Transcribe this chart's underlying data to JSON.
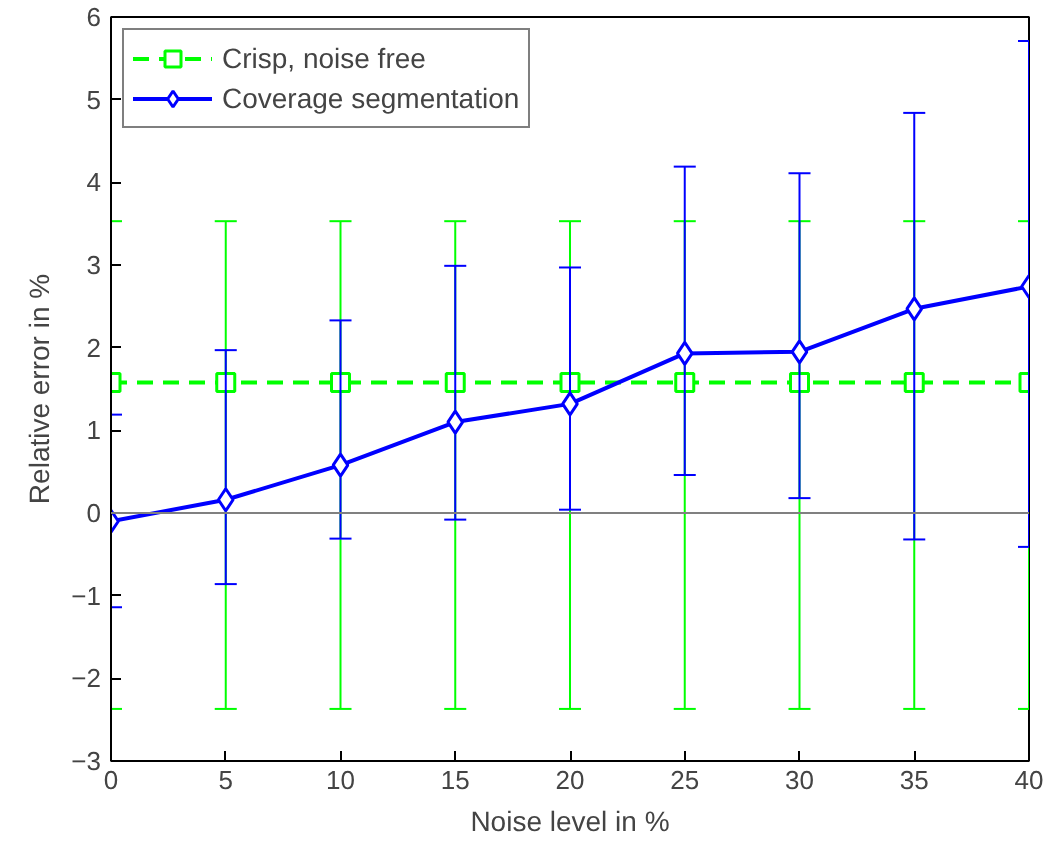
{
  "chart_data": {
    "type": "line",
    "xlabel": "Noise level in %",
    "ylabel": "Relative error in %",
    "x": [
      0,
      5,
      10,
      15,
      20,
      25,
      30,
      35,
      40
    ],
    "xlim": [
      0,
      40
    ],
    "xticks": [
      0,
      5,
      10,
      15,
      20,
      25,
      30,
      35,
      40
    ],
    "ylim": [
      -3,
      6
    ],
    "yticks": [
      -3,
      -2,
      -1,
      0,
      1,
      2,
      3,
      4,
      5,
      6
    ],
    "grid": false,
    "legend": "top left",
    "ref_lines": [
      {
        "axis": "y",
        "value": 0,
        "color": "#808080"
      }
    ],
    "series": [
      {
        "name": "Crisp, noise free",
        "color": "#00ff00",
        "marker": "square",
        "line_style": "dashed",
        "values": [
          1.58,
          1.58,
          1.58,
          1.58,
          1.58,
          1.58,
          1.58,
          1.58,
          1.58
        ],
        "errors": [
          [
            -2.37,
            3.53
          ],
          [
            -2.37,
            3.53
          ],
          [
            -2.37,
            3.53
          ],
          [
            -2.37,
            3.53
          ],
          [
            -2.37,
            3.53
          ],
          [
            -2.37,
            3.53
          ],
          [
            -2.37,
            3.53
          ],
          [
            -2.37,
            3.53
          ],
          [
            -2.37,
            3.53
          ]
        ]
      },
      {
        "name": "Coverage segmentation",
        "color": "#0000ff",
        "marker": "diamond",
        "line_style": "solid",
        "values": [
          -0.1,
          0.16,
          0.58,
          1.1,
          1.32,
          1.93,
          1.95,
          2.47,
          2.74
        ],
        "errors": [
          [
            -1.14,
            1.19
          ],
          [
            -0.86,
            1.97
          ],
          [
            -0.31,
            2.33
          ],
          [
            -0.08,
            2.99
          ],
          [
            0.04,
            2.97
          ],
          [
            0.46,
            4.19
          ],
          [
            0.18,
            4.11
          ],
          [
            -0.32,
            4.84
          ],
          [
            -0.41,
            5.71
          ]
        ]
      }
    ]
  }
}
